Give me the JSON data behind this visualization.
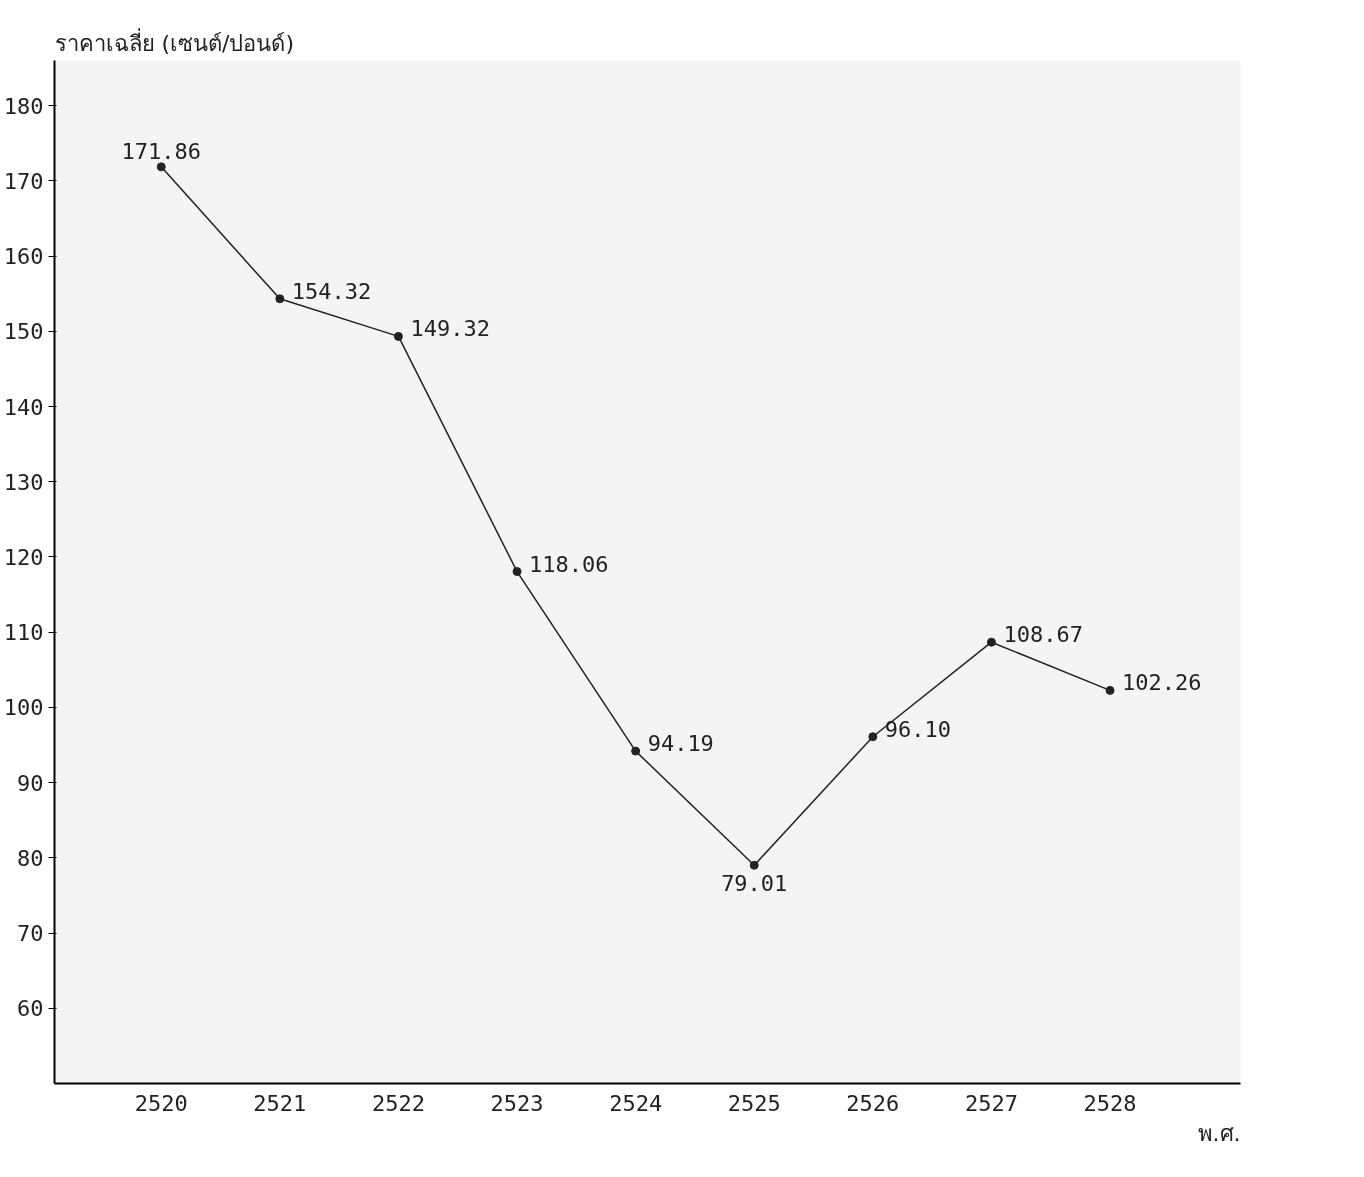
{
  "chart_data": {
    "type": "line",
    "ylabel": "ราคาเฉลี่ย (เซนต์/ปอนด์)",
    "xlabel": "พ.ศ.",
    "categories": [
      "2520",
      "2521",
      "2522",
      "2523",
      "2524",
      "2525",
      "2526",
      "2527",
      "2528"
    ],
    "series": [
      {
        "color": "#222222",
        "values": [
          171.86,
          154.32,
          149.32,
          118.06,
          94.19,
          79.01,
          96.1,
          108.67,
          102.26
        ],
        "value_labels": [
          "171.86",
          "154.32",
          "149.32",
          "118.06",
          "94.19",
          "79.01",
          "96.10",
          "108.67",
          "102.26"
        ]
      }
    ],
    "ylim": [
      50,
      186
    ],
    "yticks": [
      60,
      70,
      80,
      90,
      100,
      110,
      120,
      130,
      140,
      150,
      160,
      170,
      180
    ],
    "marker": "circle",
    "line_style": "solid",
    "grid": false
  }
}
